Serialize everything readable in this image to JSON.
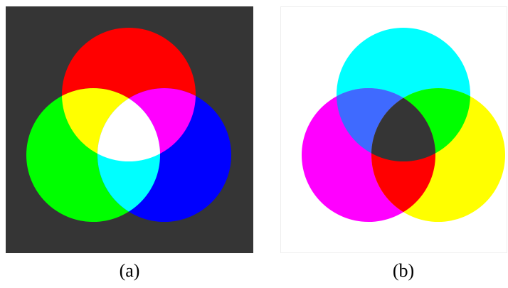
{
  "panels": [
    {
      "id": "a",
      "caption": "(a)",
      "model": "additive",
      "background": "#353535",
      "circle_colors": [
        "#ff0000",
        "#00ff00",
        "#0000ff"
      ],
      "overlap_colors": {
        "red_green": "#ffff00",
        "red_blue": "#ff00ff",
        "green_blue": "#00ffff",
        "center": "#ffffff"
      }
    },
    {
      "id": "b",
      "caption": "(b)",
      "model": "subtractive",
      "background": "#ffffff",
      "border": "#eeeeee",
      "circle_colors": [
        "#00ffff",
        "#ff00ff",
        "#ffff00"
      ],
      "overlap_colors": {
        "cyan_magenta": "#3f6aff",
        "cyan_yellow": "#00ff00",
        "magenta_yellow": "#ff0000",
        "center": "#353535"
      }
    }
  ]
}
